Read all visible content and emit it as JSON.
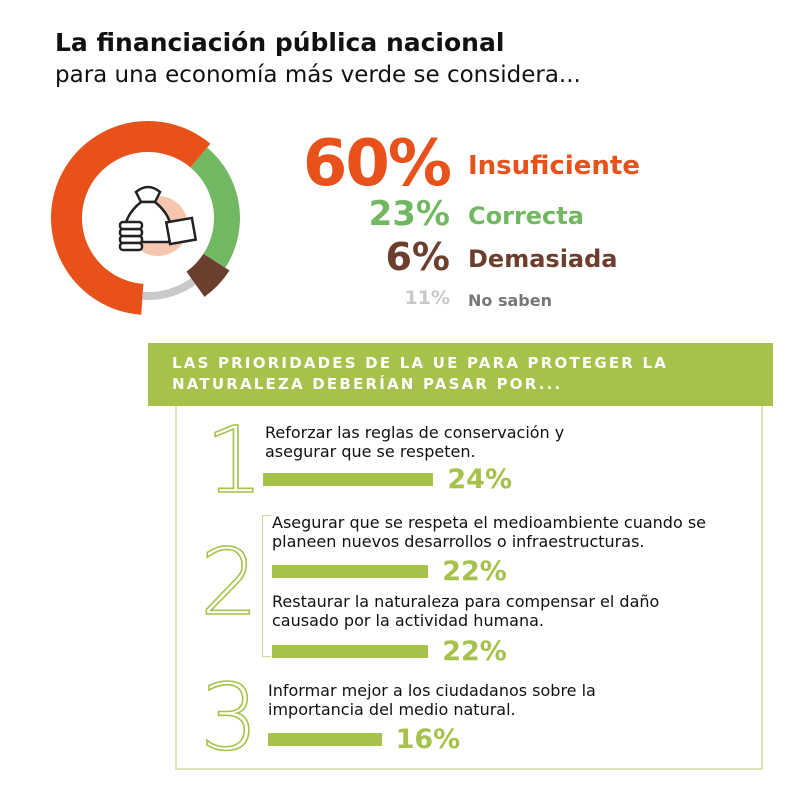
{
  "header": {
    "title": "La financiación pública nacional",
    "subtitle": "para una economía más verde se considera..."
  },
  "chart_data": [
    {
      "type": "pie",
      "categories": [
        "Insuficiente",
        "Correcta",
        "Demasiada",
        "No saben"
      ],
      "values": [
        60,
        23,
        6,
        11
      ],
      "value_labels": [
        "60%",
        "23%",
        "6%",
        "11%"
      ],
      "colors": [
        "#e8521a",
        "#72b862",
        "#6b3e2e",
        "#c9c9c9"
      ]
    },
    {
      "type": "bar",
      "title": "LAS PRIORIDADES DE LA UE PARA PROTEGER LA NATURALEZA DEBERÍAN PASAR POR...",
      "ranks": [
        "1",
        "2",
        null,
        "3"
      ],
      "categories": [
        "Reforzar las reglas de conservación y asegurar que se respeten.",
        "Asegurar que se respeta el medioambiente cuando se planeen nuevos desarrollos o infraestructuras.",
        "Restaurar la naturaleza para compensar el daño causado por la actividad humana.",
        "Informar mejor a los ciudadanos sobre la importancia del medio natural."
      ],
      "values": [
        24,
        22,
        22,
        16
      ],
      "value_labels": [
        "24%",
        "22%",
        "22%",
        "16%"
      ],
      "color": "#a6c24a"
    }
  ]
}
